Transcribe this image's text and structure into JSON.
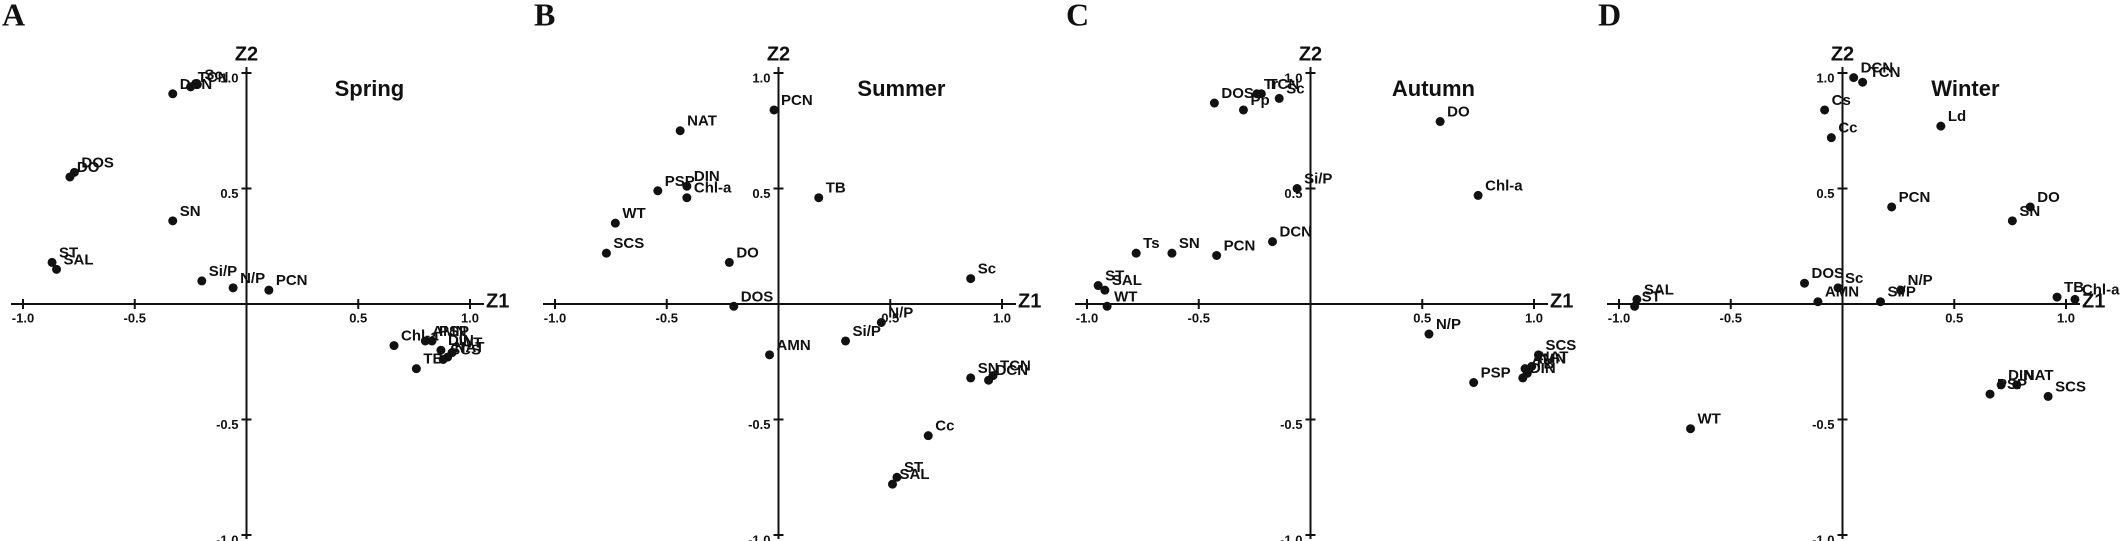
{
  "chart_data": [
    {
      "type": "scatter",
      "panel": "A",
      "title": "Spring",
      "x_label": "Z1",
      "y_label": "Z2",
      "xlim": [
        -1,
        1
      ],
      "ylim": [
        -1,
        1
      ],
      "xticks": [
        {
          "value": -1,
          "label": "-1.0"
        },
        -0.5,
        0.5,
        {
          "value": 1,
          "label": "1.0"
        }
      ],
      "yticks": [
        {
          "value": -1,
          "label": "-1.0"
        },
        -0.5,
        0.5,
        {
          "value": 1,
          "label": "1.0"
        }
      ],
      "color": "#111111",
      "point_labels": [
        "Sc",
        "TCN",
        "DCN",
        "DOS",
        "DO",
        "SN",
        "ST",
        "SAL",
        "Si/P",
        "N/P",
        "PCN",
        "AMN",
        "PSP",
        "Chl-a",
        "DIN",
        "WT",
        "NAT",
        "SCS",
        "TB"
      ],
      "x": [
        -0.22,
        -0.25,
        -0.33,
        -0.77,
        -0.79,
        -0.33,
        -0.87,
        -0.85,
        -0.2,
        -0.06,
        0.1,
        0.8,
        0.83,
        0.66,
        0.87,
        0.92,
        0.9,
        0.88,
        0.76
      ],
      "values": [
        0.95,
        0.94,
        0.91,
        0.57,
        0.55,
        0.36,
        0.18,
        0.15,
        0.1,
        0.07,
        0.06,
        -0.16,
        -0.16,
        -0.18,
        -0.2,
        -0.21,
        -0.23,
        -0.24,
        -0.28
      ]
    },
    {
      "type": "scatter",
      "panel": "B",
      "title": "Summer",
      "x_label": "Z1",
      "y_label": "Z2",
      "xlim": [
        -1,
        1
      ],
      "ylim": [
        -1,
        1
      ],
      "xticks": [
        {
          "value": -1,
          "label": "-1.0"
        },
        -0.5,
        0.5,
        {
          "value": 1,
          "label": "1.0"
        }
      ],
      "yticks": [
        {
          "value": -1,
          "label": "-1.0"
        },
        -0.5,
        0.5,
        {
          "value": 1,
          "label": "1.0"
        }
      ],
      "color": "#111111",
      "point_labels": [
        "NAT",
        "PCN",
        "DIN",
        "PSP",
        "Chl-a",
        "TB",
        "WT",
        "SCS",
        "DO",
        "Sc",
        "DOS",
        "AMN",
        "Si/P",
        "N/P",
        "SN",
        "TCN",
        "DCN",
        "Cc",
        "ST",
        "SAL"
      ],
      "x": [
        -0.44,
        -0.02,
        -0.41,
        -0.54,
        -0.41,
        0.18,
        -0.73,
        -0.77,
        -0.22,
        0.86,
        -0.2,
        -0.04,
        0.3,
        0.46,
        0.86,
        0.96,
        0.94,
        0.67,
        0.53,
        0.51
      ],
      "values": [
        0.75,
        0.84,
        0.51,
        0.49,
        0.46,
        0.46,
        0.35,
        0.22,
        0.18,
        0.11,
        -0.01,
        -0.22,
        -0.16,
        -0.08,
        -0.32,
        -0.31,
        -0.33,
        -0.57,
        -0.75,
        -0.78
      ]
    },
    {
      "type": "scatter",
      "panel": "C",
      "title": "Autumn",
      "x_label": "Z1",
      "y_label": "Z2",
      "xlim": [
        -1,
        1
      ],
      "ylim": [
        -1,
        1
      ],
      "xticks": [
        {
          "value": -1,
          "label": "-1.0"
        },
        -0.5,
        0.5,
        {
          "value": 1,
          "label": "1.0"
        }
      ],
      "yticks": [
        {
          "value": -1,
          "label": "-1.0"
        },
        -0.5,
        0.5,
        {
          "value": 1,
          "label": "1.0"
        }
      ],
      "color": "#111111",
      "point_labels": [
        "Tr",
        "TCN",
        "Sc",
        "DOS",
        "Pp",
        "DO",
        "Si/P",
        "Chl-a",
        "DCN",
        "Ts",
        "SN",
        "PCN",
        "ST",
        "SAL",
        "WT",
        "N/P",
        "SCS",
        "NAT",
        "AMN",
        "TB",
        "DIN",
        "PSP"
      ],
      "x": [
        -0.24,
        -0.22,
        -0.14,
        -0.43,
        -0.3,
        0.58,
        -0.06,
        0.75,
        -0.17,
        -0.78,
        -0.62,
        -0.42,
        -0.95,
        -0.92,
        -0.91,
        0.53,
        1.02,
        0.99,
        0.96,
        0.97,
        0.95,
        0.73
      ],
      "values": [
        0.91,
        0.91,
        0.89,
        0.87,
        0.84,
        0.79,
        0.5,
        0.47,
        0.27,
        0.22,
        0.22,
        0.21,
        0.08,
        0.06,
        -0.01,
        -0.13,
        -0.22,
        -0.27,
        -0.28,
        -0.3,
        -0.32,
        -0.34
      ]
    },
    {
      "type": "scatter",
      "panel": "D",
      "title": "Winter",
      "x_label": "Z1",
      "y_label": "Z2",
      "xlim": [
        -1,
        1
      ],
      "ylim": [
        -1,
        1
      ],
      "xticks": [
        {
          "value": -1,
          "label": "-1.0"
        },
        -0.5,
        0.5,
        {
          "value": 1,
          "label": "1.0"
        }
      ],
      "yticks": [
        {
          "value": -1,
          "label": "-1.0"
        },
        -0.5,
        0.5,
        {
          "value": 1,
          "label": "1.0"
        }
      ],
      "color": "#111111",
      "point_labels": [
        "DCN",
        "TCN",
        "Cs",
        "Cc",
        "Ld",
        "PCN",
        "SN",
        "DO",
        "DOS",
        "Sc",
        "AMN",
        "N/P",
        "Si/P",
        "SAL",
        "ST",
        "TB",
        "Chl-a",
        "WT",
        "DIN",
        "NAT",
        "PSP",
        "SCS"
      ],
      "x": [
        0.05,
        0.09,
        -0.08,
        -0.05,
        0.44,
        0.22,
        0.76,
        0.84,
        -0.17,
        -0.02,
        -0.11,
        0.26,
        0.17,
        -0.92,
        -0.93,
        0.96,
        1.04,
        -0.68,
        0.71,
        0.78,
        0.66,
        0.92
      ],
      "values": [
        0.98,
        0.96,
        0.84,
        0.72,
        0.77,
        0.42,
        0.36,
        0.42,
        0.09,
        0.07,
        0.01,
        0.06,
        0.01,
        0.02,
        -0.01,
        0.03,
        0.02,
        -0.54,
        -0.35,
        -0.35,
        -0.39,
        -0.4
      ]
    }
  ]
}
